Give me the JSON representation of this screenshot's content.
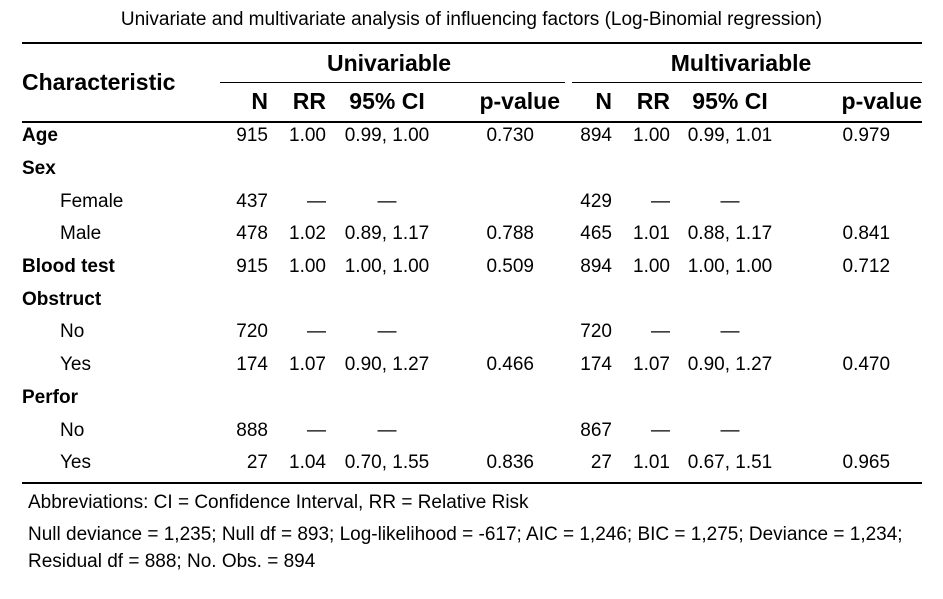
{
  "title": "Univariate and multivariate analysis of influencing factors (Log-Binomial regression)",
  "header": {
    "characteristic": "Characteristic",
    "groups": [
      "Univariable",
      "Multivariable"
    ],
    "columns": [
      "N",
      "RR",
      "95% CI",
      "p-value",
      "N",
      "RR",
      "95% CI",
      "p-value"
    ]
  },
  "rows": [
    {
      "label": "Age",
      "level": "main",
      "cells": [
        "915",
        "1.00",
        "0.99, 1.00",
        "0.730",
        "894",
        "1.00",
        "0.99, 1.01",
        "0.979"
      ]
    },
    {
      "label": "Sex",
      "level": "main",
      "cells": [
        "",
        "",
        "",
        "",
        "",
        "",
        "",
        ""
      ]
    },
    {
      "label": "Female",
      "level": "sub",
      "cells": [
        "437",
        "—",
        "—",
        "",
        "429",
        "—",
        "—",
        ""
      ]
    },
    {
      "label": "Male",
      "level": "sub",
      "cells": [
        "478",
        "1.02",
        "0.89, 1.17",
        "0.788",
        "465",
        "1.01",
        "0.88, 1.17",
        "0.841"
      ]
    },
    {
      "label": "Blood test",
      "level": "main",
      "cells": [
        "915",
        "1.00",
        "1.00, 1.00",
        "0.509",
        "894",
        "1.00",
        "1.00, 1.00",
        "0.712"
      ]
    },
    {
      "label": "Obstruct",
      "level": "main",
      "cells": [
        "",
        "",
        "",
        "",
        "",
        "",
        "",
        ""
      ]
    },
    {
      "label": "No",
      "level": "sub",
      "cells": [
        "720",
        "—",
        "—",
        "",
        "720",
        "—",
        "—",
        ""
      ]
    },
    {
      "label": "Yes",
      "level": "sub",
      "cells": [
        "174",
        "1.07",
        "0.90, 1.27",
        "0.466",
        "174",
        "1.07",
        "0.90, 1.27",
        "0.470"
      ]
    },
    {
      "label": "Perfor",
      "level": "main",
      "cells": [
        "",
        "",
        "",
        "",
        "",
        "",
        "",
        ""
      ]
    },
    {
      "label": "No",
      "level": "sub",
      "cells": [
        "888",
        "—",
        "—",
        "",
        "867",
        "—",
        "—",
        ""
      ]
    },
    {
      "label": "Yes",
      "level": "sub",
      "cells": [
        "27",
        "1.04",
        "0.70, 1.55",
        "0.836",
        "27",
        "1.01",
        "0.67, 1.51",
        "0.965"
      ]
    }
  ],
  "footnotes": [
    "Abbreviations: CI = Confidence Interval, RR = Relative Risk",
    "Null deviance = 1,235; Null df = 893; Log-likelihood = -617; AIC = 1,246; BIC = 1,275; Deviance = 1,234; Residual df = 888; No. Obs. = 894"
  ]
}
